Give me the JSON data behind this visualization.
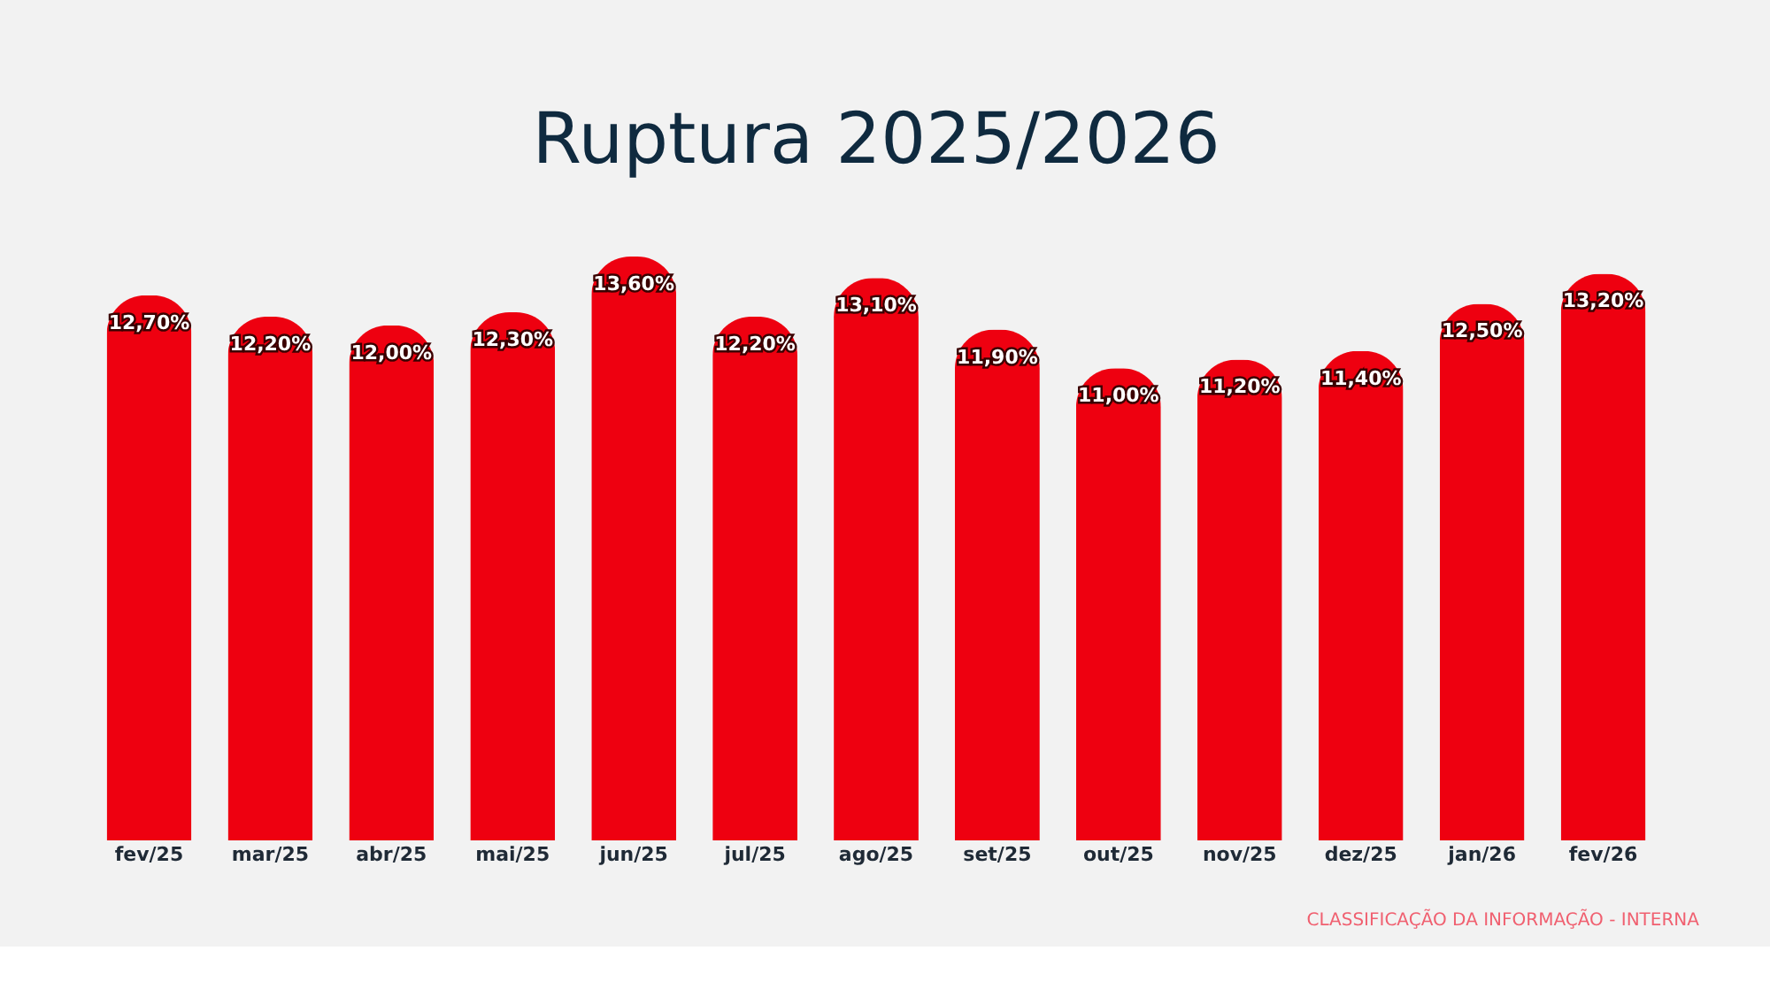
{
  "chart_data": {
    "type": "bar",
    "title": "Ruptura 2025/2026",
    "categories": [
      "fev/25",
      "mar/25",
      "abr/25",
      "mai/25",
      "jun/25",
      "jul/25",
      "ago/25",
      "set/25",
      "out/25",
      "nov/25",
      "dez/25",
      "jan/26",
      "fev/26"
    ],
    "values": [
      12.7,
      12.2,
      12.0,
      12.3,
      13.6,
      12.2,
      13.1,
      11.9,
      11.0,
      11.2,
      11.4,
      12.5,
      13.2
    ],
    "value_labels": [
      "12,70%",
      "12,20%",
      "12,00%",
      "12,30%",
      "13,60%",
      "12,20%",
      "13,10%",
      "11,90%",
      "11,00%",
      "11,20%",
      "11,40%",
      "12,50%",
      "13,20%"
    ],
    "color": "#ee0010",
    "annotations": [
      "CLASSIFICAÇÃO DA INFORMAÇÃO - INTERNA"
    ],
    "grid": false
  }
}
